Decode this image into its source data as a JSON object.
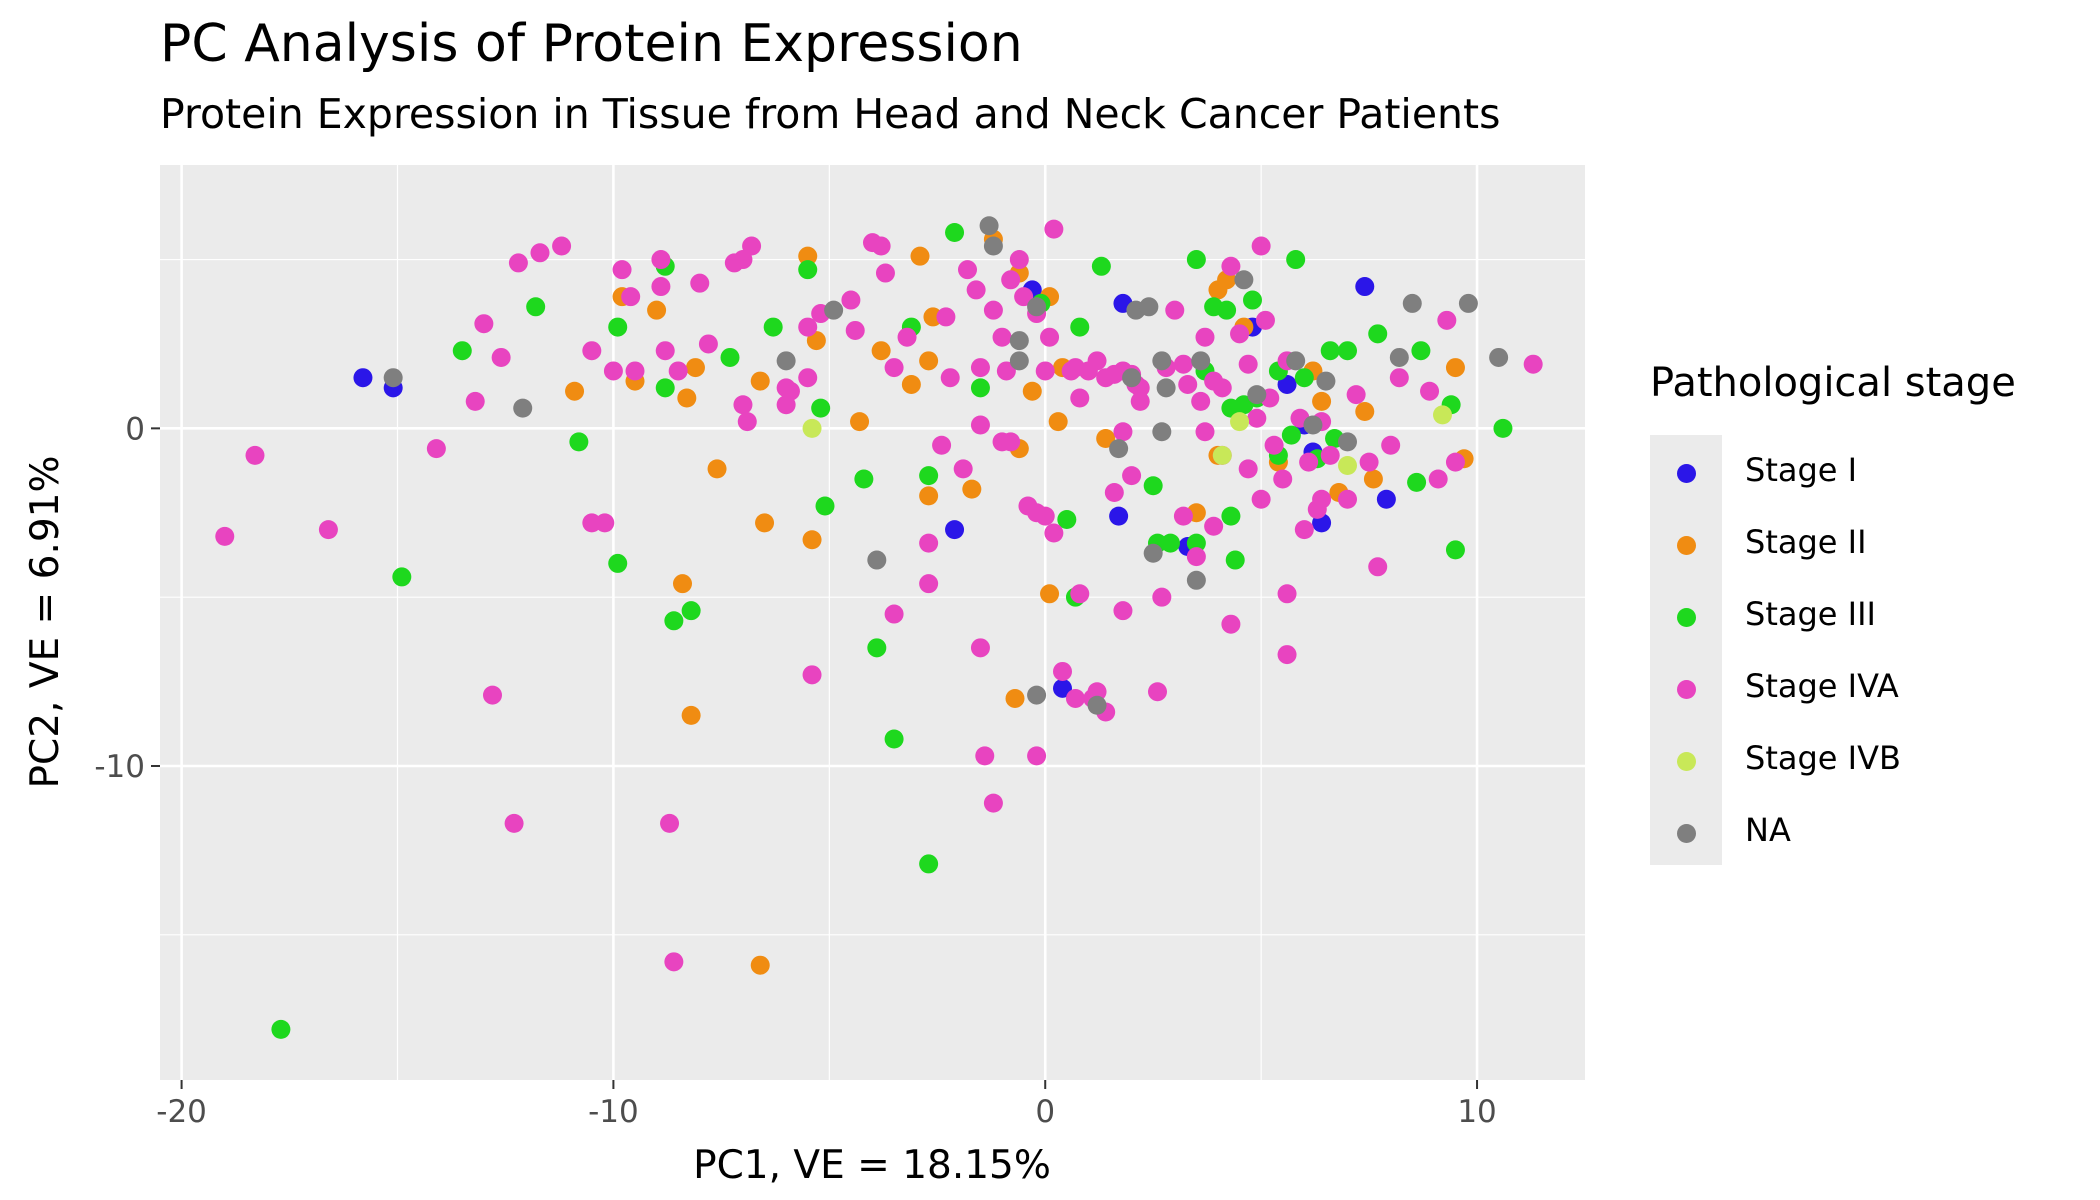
{
  "chart_data": {
    "type": "scatter",
    "title": "PC Analysis of Protein Expression",
    "subtitle": "Protein Expression in Tissue from Head and Neck Cancer Patients",
    "xlabel": "PC1, VE = 18.15%",
    "ylabel": "PC2, VE = 6.91%",
    "xlim": [
      -20.5,
      12.5
    ],
    "ylim": [
      -19.3,
      7.8
    ],
    "x_ticks": [
      -20,
      -10,
      0,
      10
    ],
    "x_tick_labels": [
      "-20",
      "-10",
      "0",
      "10"
    ],
    "y_ticks": [
      -10,
      0
    ],
    "y_tick_labels": [
      "-10",
      "0"
    ],
    "grid": true,
    "legend_title": "Pathological stage",
    "legend_position": "right",
    "series": [
      {
        "name": "Stage I",
        "color": "#2b16e8",
        "points": [
          [
            -15.8,
            1.5
          ],
          [
            -15.1,
            1.2
          ],
          [
            -0.3,
            4.1
          ],
          [
            1.8,
            3.7
          ],
          [
            4.8,
            3.0
          ],
          [
            7.4,
            4.2
          ],
          [
            5.6,
            1.3
          ],
          [
            6.0,
            0.1
          ],
          [
            6.2,
            -0.7
          ],
          [
            6.4,
            -2.8
          ],
          [
            7.9,
            -2.1
          ],
          [
            1.7,
            -2.6
          ],
          [
            3.3,
            -3.5
          ],
          [
            -2.1,
            -3.0
          ],
          [
            0.4,
            -7.7
          ]
        ]
      },
      {
        "name": "Stage II",
        "color": "#f08c12",
        "points": [
          [
            -9.8,
            3.9
          ],
          [
            -9.0,
            3.5
          ],
          [
            -9.5,
            1.4
          ],
          [
            -8.3,
            0.9
          ],
          [
            -8.1,
            1.8
          ],
          [
            -10.9,
            1.1
          ],
          [
            -5.5,
            5.1
          ],
          [
            -5.3,
            2.6
          ],
          [
            -4.3,
            0.2
          ],
          [
            -3.8,
            2.3
          ],
          [
            -3.1,
            1.3
          ],
          [
            -2.9,
            5.1
          ],
          [
            -2.6,
            3.3
          ],
          [
            -2.7,
            2.0
          ],
          [
            -1.2,
            5.6
          ],
          [
            -0.6,
            4.6
          ],
          [
            -0.3,
            1.1
          ],
          [
            0.1,
            3.9
          ],
          [
            0.4,
            1.8
          ],
          [
            0.3,
            0.2
          ],
          [
            -0.6,
            -0.6
          ],
          [
            1.4,
            -0.3
          ],
          [
            4.0,
            4.1
          ],
          [
            4.2,
            4.4
          ],
          [
            4.6,
            3.0
          ],
          [
            5.4,
            -1.0
          ],
          [
            6.2,
            1.7
          ],
          [
            6.4,
            0.8
          ],
          [
            7.4,
            0.5
          ],
          [
            7.6,
            -1.5
          ],
          [
            6.8,
            -1.9
          ],
          [
            9.5,
            1.8
          ],
          [
            9.7,
            -0.9
          ],
          [
            -6.6,
            1.4
          ],
          [
            -7.6,
            -1.2
          ],
          [
            -5.4,
            -3.3
          ],
          [
            -6.5,
            -2.8
          ],
          [
            -2.7,
            -2.0
          ],
          [
            -1.7,
            -1.8
          ],
          [
            0.1,
            -4.9
          ],
          [
            -0.7,
            -8.0
          ],
          [
            -8.4,
            -4.6
          ],
          [
            -8.2,
            -8.5
          ],
          [
            -6.6,
            -15.9
          ],
          [
            3.5,
            -2.5
          ],
          [
            4.0,
            -0.8
          ]
        ]
      },
      {
        "name": "Stage III",
        "color": "#1ed81e",
        "points": [
          [
            -11.8,
            3.6
          ],
          [
            -13.5,
            2.3
          ],
          [
            -9.9,
            3.0
          ],
          [
            -8.8,
            1.2
          ],
          [
            -8.8,
            4.8
          ],
          [
            -7.3,
            2.1
          ],
          [
            -6.3,
            3.0
          ],
          [
            -5.5,
            4.7
          ],
          [
            -5.2,
            0.6
          ],
          [
            -3.1,
            3.0
          ],
          [
            -2.1,
            5.8
          ],
          [
            -1.5,
            1.2
          ],
          [
            -0.1,
            3.7
          ],
          [
            0.8,
            3.0
          ],
          [
            1.3,
            4.8
          ],
          [
            3.5,
            5.0
          ],
          [
            3.7,
            1.7
          ],
          [
            3.9,
            3.6
          ],
          [
            4.2,
            3.5
          ],
          [
            4.3,
            0.6
          ],
          [
            4.8,
            3.8
          ],
          [
            4.9,
            0.9
          ],
          [
            5.4,
            1.7
          ],
          [
            5.7,
            -0.2
          ],
          [
            6.0,
            1.5
          ],
          [
            6.6,
            2.3
          ],
          [
            7.0,
            2.3
          ],
          [
            7.7,
            2.8
          ],
          [
            8.7,
            2.3
          ],
          [
            9.4,
            0.7
          ],
          [
            10.6,
            0.0
          ],
          [
            5.8,
            5.0
          ],
          [
            -10.8,
            -0.4
          ],
          [
            -9.9,
            -4.0
          ],
          [
            -8.6,
            -5.7
          ],
          [
            -8.2,
            -5.4
          ],
          [
            -5.1,
            -2.3
          ],
          [
            -4.2,
            -1.5
          ],
          [
            -3.9,
            -6.5
          ],
          [
            -3.5,
            -9.2
          ],
          [
            -2.7,
            -1.4
          ],
          [
            -2.7,
            -12.9
          ],
          [
            0.5,
            -2.7
          ],
          [
            0.7,
            -5.0
          ],
          [
            2.5,
            -1.7
          ],
          [
            2.6,
            -3.4
          ],
          [
            2.9,
            -3.4
          ],
          [
            3.5,
            -3.4
          ],
          [
            4.3,
            -2.6
          ],
          [
            4.4,
            -3.9
          ],
          [
            4.6,
            0.7
          ],
          [
            5.4,
            -0.8
          ],
          [
            6.3,
            -0.9
          ],
          [
            6.7,
            -0.3
          ],
          [
            8.6,
            -1.6
          ],
          [
            9.5,
            -3.6
          ],
          [
            -14.9,
            -4.4
          ],
          [
            -17.7,
            -17.8
          ]
        ]
      },
      {
        "name": "Stage IVA",
        "color": "#e844c0",
        "points": [
          [
            -11.2,
            5.4
          ],
          [
            -11.7,
            5.2
          ],
          [
            -12.2,
            4.9
          ],
          [
            -13.0,
            3.1
          ],
          [
            -12.6,
            2.1
          ],
          [
            -13.2,
            0.8
          ],
          [
            -14.1,
            -0.6
          ],
          [
            -10.5,
            2.3
          ],
          [
            -10.0,
            1.7
          ],
          [
            -9.6,
            3.9
          ],
          [
            -9.5,
            1.7
          ],
          [
            -9.8,
            4.7
          ],
          [
            -8.9,
            5.0
          ],
          [
            -8.9,
            4.2
          ],
          [
            -8.5,
            1.7
          ],
          [
            -8.8,
            2.3
          ],
          [
            -8.0,
            4.3
          ],
          [
            -7.8,
            2.5
          ],
          [
            -7.2,
            4.9
          ],
          [
            -7.0,
            5.0
          ],
          [
            -6.8,
            5.4
          ],
          [
            -7.0,
            0.7
          ],
          [
            -6.9,
            0.2
          ],
          [
            -6.0,
            1.2
          ],
          [
            -5.9,
            1.1
          ],
          [
            -5.5,
            3.0
          ],
          [
            -5.2,
            3.4
          ],
          [
            -4.5,
            3.8
          ],
          [
            -4.4,
            2.9
          ],
          [
            -4.0,
            5.5
          ],
          [
            -3.8,
            5.4
          ],
          [
            -3.7,
            4.6
          ],
          [
            -3.2,
            2.7
          ],
          [
            -3.5,
            1.8
          ],
          [
            -2.3,
            3.3
          ],
          [
            -2.2,
            1.5
          ],
          [
            -1.8,
            4.7
          ],
          [
            -1.6,
            4.1
          ],
          [
            -1.5,
            1.8
          ],
          [
            -1.2,
            3.5
          ],
          [
            -1.0,
            2.7
          ],
          [
            -0.9,
            1.7
          ],
          [
            -0.8,
            4.4
          ],
          [
            -0.6,
            5.0
          ],
          [
            -0.5,
            3.9
          ],
          [
            -0.2,
            3.4
          ],
          [
            0.0,
            1.7
          ],
          [
            0.1,
            2.7
          ],
          [
            0.2,
            5.9
          ],
          [
            0.6,
            1.7
          ],
          [
            0.8,
            0.9
          ],
          [
            0.7,
            1.8
          ],
          [
            1.0,
            1.7
          ],
          [
            1.2,
            2.0
          ],
          [
            1.4,
            1.5
          ],
          [
            1.6,
            1.6
          ],
          [
            1.8,
            1.7
          ],
          [
            2.0,
            1.6
          ],
          [
            2.1,
            1.3
          ],
          [
            2.2,
            1.2
          ],
          [
            2.8,
            1.8
          ],
          [
            3.0,
            3.5
          ],
          [
            3.2,
            1.9
          ],
          [
            3.3,
            1.3
          ],
          [
            3.6,
            0.8
          ],
          [
            3.7,
            2.7
          ],
          [
            3.9,
            1.4
          ],
          [
            4.1,
            1.2
          ],
          [
            4.3,
            4.8
          ],
          [
            4.5,
            2.8
          ],
          [
            4.7,
            1.9
          ],
          [
            4.9,
            0.3
          ],
          [
            5.0,
            5.4
          ],
          [
            5.1,
            3.2
          ],
          [
            5.2,
            0.9
          ],
          [
            5.3,
            -0.5
          ],
          [
            5.6,
            2.0
          ],
          [
            5.9,
            0.3
          ],
          [
            6.1,
            -1.0
          ],
          [
            6.3,
            -2.4
          ],
          [
            6.4,
            0.2
          ],
          [
            6.6,
            -0.8
          ],
          [
            7.0,
            -2.1
          ],
          [
            7.2,
            1.0
          ],
          [
            7.5,
            -1.0
          ],
          [
            8.0,
            -0.5
          ],
          [
            8.2,
            1.5
          ],
          [
            8.9,
            1.1
          ],
          [
            9.1,
            -1.5
          ],
          [
            9.3,
            3.2
          ],
          [
            9.5,
            -1.0
          ],
          [
            11.3,
            1.9
          ],
          [
            -6.0,
            0.7
          ],
          [
            -5.5,
            1.5
          ],
          [
            -5.4,
            -7.3
          ],
          [
            -3.5,
            -5.5
          ],
          [
            -2.7,
            -3.4
          ],
          [
            -2.7,
            -4.6
          ],
          [
            -2.4,
            -0.5
          ],
          [
            -1.9,
            -1.2
          ],
          [
            -1.5,
            0.1
          ],
          [
            -1.0,
            -0.4
          ],
          [
            -0.8,
            -0.4
          ],
          [
            -0.4,
            -2.3
          ],
          [
            -0.2,
            -2.5
          ],
          [
            0.0,
            -2.6
          ],
          [
            0.2,
            -3.1
          ],
          [
            0.4,
            -7.2
          ],
          [
            0.7,
            -8.0
          ],
          [
            0.8,
            -4.9
          ],
          [
            1.1,
            -8.0
          ],
          [
            1.2,
            -7.8
          ],
          [
            1.4,
            -8.4
          ],
          [
            1.6,
            -1.9
          ],
          [
            1.8,
            -5.4
          ],
          [
            1.8,
            -0.1
          ],
          [
            2.0,
            -1.4
          ],
          [
            2.2,
            0.8
          ],
          [
            2.6,
            -7.8
          ],
          [
            2.7,
            -5.0
          ],
          [
            3.2,
            -2.6
          ],
          [
            3.5,
            -3.8
          ],
          [
            3.7,
            -0.1
          ],
          [
            3.9,
            -2.9
          ],
          [
            4.1,
            -0.8
          ],
          [
            4.3,
            -5.8
          ],
          [
            4.7,
            -1.2
          ],
          [
            5.0,
            -2.1
          ],
          [
            5.5,
            -1.5
          ],
          [
            5.6,
            -4.9
          ],
          [
            5.6,
            -6.7
          ],
          [
            6.0,
            -3.0
          ],
          [
            6.4,
            -2.1
          ],
          [
            7.7,
            -4.1
          ],
          [
            -12.3,
            -11.7
          ],
          [
            -12.8,
            -7.9
          ],
          [
            -16.6,
            -3.0
          ],
          [
            -18.3,
            -0.8
          ],
          [
            -19.0,
            -3.2
          ],
          [
            -10.5,
            -2.8
          ],
          [
            -10.2,
            -2.8
          ],
          [
            -8.7,
            -11.7
          ],
          [
            -8.6,
            -15.8
          ],
          [
            -1.5,
            -6.5
          ],
          [
            -1.4,
            -9.7
          ],
          [
            -1.2,
            -11.1
          ],
          [
            -0.2,
            -9.7
          ]
        ]
      },
      {
        "name": "Stage IVB",
        "color": "#c8e858",
        "points": [
          [
            -5.4,
            0.0
          ],
          [
            4.5,
            0.2
          ],
          [
            4.1,
            -0.8
          ],
          [
            7.0,
            -1.1
          ],
          [
            9.2,
            0.4
          ]
        ]
      },
      {
        "name": "NA",
        "color": "#7f7f7f",
        "points": [
          [
            -15.1,
            1.5
          ],
          [
            -12.1,
            0.6
          ],
          [
            -6.0,
            2.0
          ],
          [
            -4.9,
            3.5
          ],
          [
            -3.9,
            -3.9
          ],
          [
            -1.3,
            6.0
          ],
          [
            -1.2,
            5.4
          ],
          [
            -0.6,
            2.6
          ],
          [
            -0.2,
            3.6
          ],
          [
            1.7,
            -0.6
          ],
          [
            2.0,
            1.5
          ],
          [
            2.1,
            3.5
          ],
          [
            2.4,
            3.6
          ],
          [
            2.7,
            2.0
          ],
          [
            2.8,
            1.2
          ],
          [
            2.7,
            -0.1
          ],
          [
            3.6,
            2.0
          ],
          [
            4.6,
            4.4
          ],
          [
            4.9,
            1.0
          ],
          [
            5.8,
            2.0
          ],
          [
            6.2,
            0.1
          ],
          [
            6.5,
            1.4
          ],
          [
            7.0,
            -0.4
          ],
          [
            8.5,
            3.7
          ],
          [
            9.8,
            3.7
          ],
          [
            10.5,
            2.1
          ],
          [
            8.2,
            2.1
          ],
          [
            2.5,
            -3.7
          ],
          [
            3.5,
            -4.5
          ],
          [
            -0.2,
            -7.9
          ],
          [
            1.2,
            -8.2
          ],
          [
            -0.6,
            2.0
          ]
        ]
      }
    ]
  }
}
